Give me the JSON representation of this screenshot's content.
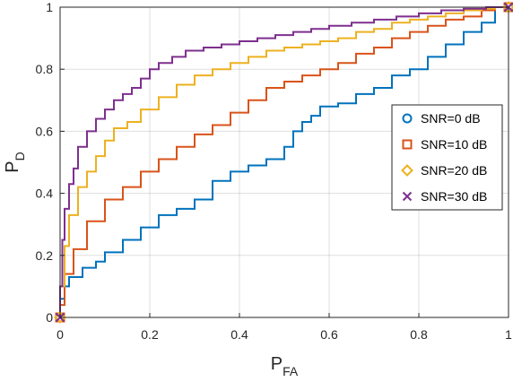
{
  "chart_data": {
    "type": "line",
    "title": "",
    "xlabel": {
      "main": "P",
      "sub": "FA"
    },
    "ylabel": {
      "main": "P",
      "sub": "D"
    },
    "xlim": [
      0,
      1
    ],
    "ylim": [
      0,
      1
    ],
    "xticks": [
      0,
      0.2,
      0.4,
      0.6,
      0.8,
      1
    ],
    "yticks": [
      0,
      0.2,
      0.4,
      0.6,
      0.8,
      1
    ],
    "xtick_labels": [
      "0",
      "0.2",
      "0.4",
      "0.6",
      "0.8",
      "1"
    ],
    "ytick_labels": [
      "0",
      "0.2",
      "0.4",
      "0.6",
      "0.8",
      "1"
    ],
    "grid": true,
    "legend_position": "right",
    "series": [
      {
        "name": "SNR=0 dB",
        "color": "#0072BD",
        "marker": "circle",
        "x": [
          0,
          0.01,
          0.02,
          0.05,
          0.08,
          0.1,
          0.14,
          0.18,
          0.22,
          0.26,
          0.3,
          0.34,
          0.38,
          0.42,
          0.46,
          0.5,
          0.52,
          0.54,
          0.56,
          0.58,
          0.62,
          0.66,
          0.7,
          0.74,
          0.78,
          0.82,
          0.86,
          0.9,
          0.94,
          0.97,
          1
        ],
        "y": [
          0,
          0.06,
          0.1,
          0.13,
          0.16,
          0.18,
          0.21,
          0.25,
          0.29,
          0.33,
          0.35,
          0.38,
          0.44,
          0.47,
          0.49,
          0.51,
          0.55,
          0.6,
          0.63,
          0.65,
          0.68,
          0.69,
          0.72,
          0.74,
          0.78,
          0.8,
          0.84,
          0.88,
          0.92,
          0.95,
          1
        ]
      },
      {
        "name": "SNR=10 dB",
        "color": "#D95319",
        "marker": "square",
        "x": [
          0,
          0.01,
          0.03,
          0.06,
          0.1,
          0.14,
          0.18,
          0.22,
          0.26,
          0.3,
          0.34,
          0.38,
          0.42,
          0.46,
          0.5,
          0.54,
          0.58,
          0.62,
          0.66,
          0.7,
          0.74,
          0.78,
          0.82,
          0.86,
          0.9,
          0.94,
          0.97,
          1
        ],
        "y": [
          0,
          0.04,
          0.14,
          0.22,
          0.31,
          0.38,
          0.42,
          0.47,
          0.51,
          0.55,
          0.59,
          0.62,
          0.66,
          0.7,
          0.74,
          0.76,
          0.78,
          0.8,
          0.82,
          0.85,
          0.87,
          0.9,
          0.92,
          0.94,
          0.96,
          0.97,
          0.99,
          1
        ]
      },
      {
        "name": "SNR=20 dB",
        "color": "#EDB120",
        "marker": "diamond",
        "x": [
          0,
          0.01,
          0.02,
          0.04,
          0.06,
          0.08,
          0.1,
          0.12,
          0.15,
          0.18,
          0.22,
          0.26,
          0.3,
          0.34,
          0.38,
          0.42,
          0.46,
          0.5,
          0.54,
          0.58,
          0.62,
          0.66,
          0.7,
          0.74,
          0.78,
          0.82,
          0.86,
          0.9,
          0.94,
          0.97,
          1
        ],
        "y": [
          0,
          0.1,
          0.23,
          0.33,
          0.42,
          0.47,
          0.52,
          0.57,
          0.61,
          0.63,
          0.67,
          0.71,
          0.75,
          0.78,
          0.8,
          0.82,
          0.84,
          0.86,
          0.87,
          0.88,
          0.89,
          0.9,
          0.92,
          0.93,
          0.95,
          0.96,
          0.97,
          0.98,
          0.99,
          0.995,
          1
        ]
      },
      {
        "name": "SNR=30 dB",
        "color": "#7E2F8E",
        "marker": "cross",
        "x": [
          0,
          0.005,
          0.01,
          0.02,
          0.03,
          0.04,
          0.06,
          0.08,
          0.1,
          0.12,
          0.14,
          0.16,
          0.18,
          0.2,
          0.22,
          0.25,
          0.28,
          0.32,
          0.36,
          0.4,
          0.44,
          0.48,
          0.52,
          0.56,
          0.6,
          0.65,
          0.7,
          0.75,
          0.8,
          0.85,
          0.9,
          0.95,
          1
        ],
        "y": [
          0,
          0.1,
          0.25,
          0.35,
          0.43,
          0.48,
          0.55,
          0.6,
          0.64,
          0.67,
          0.7,
          0.72,
          0.74,
          0.77,
          0.8,
          0.82,
          0.84,
          0.86,
          0.87,
          0.88,
          0.89,
          0.9,
          0.91,
          0.92,
          0.93,
          0.94,
          0.95,
          0.96,
          0.97,
          0.98,
          0.99,
          0.995,
          1
        ]
      }
    ]
  }
}
